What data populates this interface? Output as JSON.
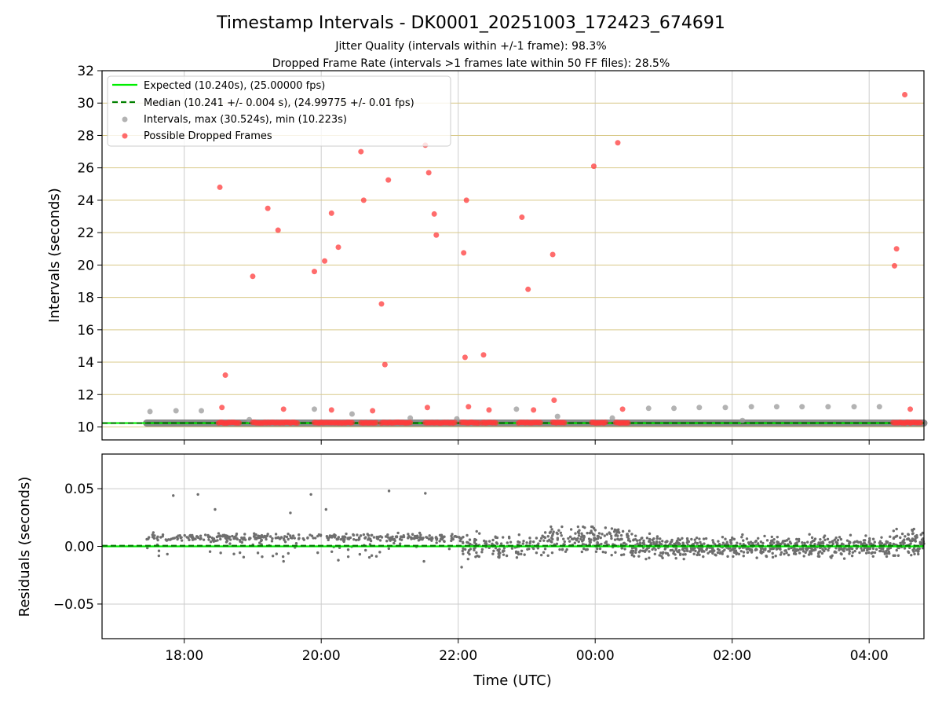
{
  "chart_data": {
    "type": "scatter",
    "title": "Timestamp Intervals - DK0001_20251003_172423_674691",
    "subtitle_lines": [
      "Jitter Quality (intervals within +/-1 frame): 98.3%",
      "Dropped Frame Rate (intervals >1 frames late within 50 FF files): 28.5%"
    ],
    "colors": {
      "expected": "#00ee00",
      "median": "#008000",
      "intervals": "#999999",
      "dropped": "#ff3b3b",
      "residual": "#6e6e6e",
      "hgrid_top": "#d9c98a",
      "grid": "#cccccc"
    },
    "xaxis": {
      "label": "Time (UTC)",
      "range_hours": [
        16.8,
        28.8
      ],
      "ticks": [
        {
          "value": 18,
          "label": "18:00"
        },
        {
          "value": 20,
          "label": "20:00"
        },
        {
          "value": 22,
          "label": "22:00"
        },
        {
          "value": 24,
          "label": "00:00"
        },
        {
          "value": 26,
          "label": "02:00"
        },
        {
          "value": 28,
          "label": "04:00"
        }
      ]
    },
    "top_panel": {
      "ylabel": "Intervals (seconds)",
      "ylim": [
        9.2,
        32
      ],
      "yticks": [
        {
          "value": 10,
          "label": "10"
        },
        {
          "value": 12,
          "label": "12"
        },
        {
          "value": 14,
          "label": "14"
        },
        {
          "value": 16,
          "label": "16"
        },
        {
          "value": 18,
          "label": "18"
        },
        {
          "value": 20,
          "label": "20"
        },
        {
          "value": 22,
          "label": "22"
        },
        {
          "value": 24,
          "label": "24"
        },
        {
          "value": 26,
          "label": "26"
        },
        {
          "value": 28,
          "label": "28"
        },
        {
          "value": 30,
          "label": "30"
        },
        {
          "value": 32,
          "label": "32"
        }
      ],
      "expected_value": 10.24,
      "median_value": 10.241,
      "legend": {
        "location": "upper-left",
        "entries": [
          {
            "key": "expected",
            "label": "Expected (10.240s), (25.00000 fps)"
          },
          {
            "key": "median",
            "label": "Median (10.241 +/- 0.004 s), (24.99775 +/- 0.01 fps)"
          },
          {
            "key": "intervals",
            "label": "Intervals, max (30.524s), min (10.223s)"
          },
          {
            "key": "dropped",
            "label": "Possible Dropped Frames"
          }
        ]
      },
      "normal_band": {
        "y": 10.24,
        "segments": [
          [
            17.45,
            29.0
          ]
        ]
      },
      "interval_points": [
        [
          17.5,
          10.95
        ],
        [
          17.88,
          11.0
        ],
        [
          18.25,
          11.0
        ],
        [
          18.95,
          10.45
        ],
        [
          19.9,
          11.1
        ],
        [
          20.45,
          10.8
        ],
        [
          21.3,
          10.55
        ],
        [
          21.98,
          10.5
        ],
        [
          22.85,
          11.1
        ],
        [
          23.45,
          10.65
        ],
        [
          24.25,
          10.55
        ],
        [
          24.78,
          11.15
        ],
        [
          25.15,
          11.15
        ],
        [
          25.52,
          11.2
        ],
        [
          25.9,
          11.2
        ],
        [
          26.28,
          11.25
        ],
        [
          26.65,
          11.25
        ],
        [
          27.02,
          11.25
        ],
        [
          27.4,
          11.25
        ],
        [
          27.78,
          11.25
        ],
        [
          28.15,
          11.25
        ],
        [
          26.15,
          10.4
        ]
      ],
      "dropped_points": [
        [
          18.52,
          24.8
        ],
        [
          18.6,
          13.2
        ],
        [
          18.55,
          11.2
        ],
        [
          19.0,
          19.3
        ],
        [
          19.22,
          23.5
        ],
        [
          19.37,
          22.15
        ],
        [
          19.45,
          11.1
        ],
        [
          19.9,
          19.6
        ],
        [
          20.05,
          20.25
        ],
        [
          20.15,
          23.2
        ],
        [
          20.15,
          11.05
        ],
        [
          20.25,
          21.1
        ],
        [
          20.58,
          27.0
        ],
        [
          20.62,
          24.0
        ],
        [
          20.75,
          11.0
        ],
        [
          20.88,
          17.6
        ],
        [
          20.93,
          13.85
        ],
        [
          20.98,
          25.25
        ],
        [
          21.52,
          27.4
        ],
        [
          21.57,
          25.7
        ],
        [
          21.65,
          23.15
        ],
        [
          21.68,
          21.85
        ],
        [
          21.55,
          11.2
        ],
        [
          22.08,
          20.75
        ],
        [
          22.12,
          24.0
        ],
        [
          22.1,
          14.3
        ],
        [
          22.15,
          11.25
        ],
        [
          22.37,
          14.45
        ],
        [
          22.45,
          11.05
        ],
        [
          22.93,
          22.95
        ],
        [
          23.02,
          18.5
        ],
        [
          23.1,
          11.05
        ],
        [
          23.38,
          20.65
        ],
        [
          23.4,
          11.65
        ],
        [
          23.98,
          26.1
        ],
        [
          24.33,
          27.55
        ],
        [
          24.4,
          11.1
        ],
        [
          28.37,
          19.95
        ],
        [
          28.4,
          21.0
        ],
        [
          28.52,
          30.52
        ],
        [
          28.6,
          11.1
        ]
      ],
      "dropped_clusters": [
        [
          18.5,
          18.8
        ],
        [
          19.0,
          19.65
        ],
        [
          19.9,
          20.45
        ],
        [
          20.58,
          20.8
        ],
        [
          20.88,
          21.3
        ],
        [
          21.52,
          21.95
        ],
        [
          22.05,
          22.3
        ],
        [
          22.35,
          22.55
        ],
        [
          22.88,
          23.2
        ],
        [
          23.38,
          23.55
        ],
        [
          23.95,
          24.15
        ],
        [
          24.3,
          24.48
        ],
        [
          28.35,
          28.75
        ]
      ]
    },
    "bottom_panel": {
      "ylabel": "Residuals (seconds)",
      "ylim": [
        -0.08,
        0.08
      ],
      "yticks": [
        {
          "value": 0.05,
          "label": "0.05"
        },
        {
          "value": 0.0,
          "label": "0.00"
        },
        {
          "value": -0.05,
          "label": "−0.05"
        }
      ],
      "outliers": [
        [
          17.84,
          0.044
        ],
        [
          18.2,
          0.045
        ],
        [
          19.55,
          0.029
        ],
        [
          19.85,
          0.045
        ],
        [
          20.07,
          0.032
        ],
        [
          20.99,
          0.048
        ],
        [
          21.52,
          0.046
        ],
        [
          18.45,
          0.032
        ],
        [
          22.05,
          -0.018
        ],
        [
          19.45,
          -0.013
        ],
        [
          20.25,
          -0.012
        ],
        [
          21.5,
          -0.013
        ]
      ],
      "patterns": [
        {
          "range": [
            17.45,
            22.05
          ],
          "offset": 0.0075,
          "spread": 0.0015,
          "scatter_frac": 0.2,
          "scatter_range": [
            -0.01,
            0.012
          ],
          "count": 380
        },
        {
          "range": [
            22.05,
            23.3
          ],
          "offset": 0.0,
          "spread": 0.006,
          "scatter_frac": 0.15,
          "scatter_range": [
            -0.01,
            0.01
          ],
          "count": 130
        },
        {
          "range": [
            23.3,
            24.5
          ],
          "offset": 0.006,
          "spread": 0.006,
          "scatter_frac": 0.2,
          "scatter_range": [
            -0.008,
            0.014
          ],
          "count": 170
        },
        {
          "range": [
            24.5,
            28.3
          ],
          "offset": -0.0005,
          "spread": 0.0045,
          "scatter_frac": 0.0,
          "scatter_range": [
            -0.008,
            0.008
          ],
          "count": 650
        },
        {
          "range": [
            28.3,
            28.8
          ],
          "offset": 0.004,
          "spread": 0.006,
          "scatter_frac": 0.0,
          "scatter_range": [
            -0.005,
            0.012
          ],
          "count": 90
        }
      ]
    }
  }
}
